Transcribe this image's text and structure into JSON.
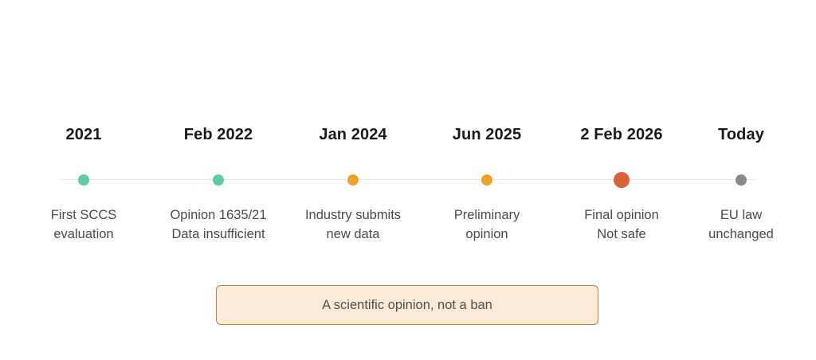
{
  "timeline": {
    "events": [
      {
        "date": "2021",
        "lines": [
          "First SCCS",
          "evaluation"
        ],
        "dot_color": "#5ecba5"
      },
      {
        "date": "Feb 2022",
        "lines": [
          "Opinion 1635/21",
          "Data insufficient"
        ],
        "dot_color": "#5ecba5"
      },
      {
        "date": "Jan 2024",
        "lines": [
          "Industry submits",
          "new data"
        ],
        "dot_color": "#f0a129"
      },
      {
        "date": "Jun 2025",
        "lines": [
          "Preliminary",
          "opinion"
        ],
        "dot_color": "#f0a129"
      },
      {
        "date": "2 Feb 2026",
        "lines": [
          "Final opinion",
          "Not safe"
        ],
        "dot_color": "#d9623b",
        "emphasis": true
      },
      {
        "date": "Today",
        "lines": [
          "EU law",
          "unchanged"
        ],
        "dot_color": "#8a8a86"
      }
    ]
  },
  "callout": {
    "text": "A scientific opinion, not a ban"
  }
}
